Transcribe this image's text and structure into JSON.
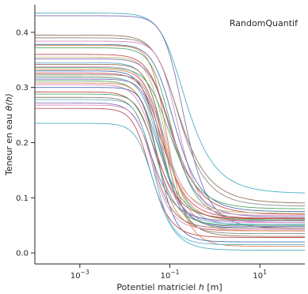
{
  "chart_data": {
    "type": "line",
    "title": "",
    "annotation": "RandomQuantif",
    "xlabel": "Potentiel matriciel h [m]",
    "xlabel_parts": {
      "pre": "Potentiel matriciel ",
      "var": "h",
      "post": " [m]"
    },
    "ylabel": "Teneur en eau θ(h)",
    "ylabel_parts": {
      "pre": "Teneur en eau ",
      "var": "θ(h)"
    },
    "xscale": "log",
    "xlim": [
      0.0001,
      100
    ],
    "ylim": [
      -0.02,
      0.45
    ],
    "xticks": [
      {
        "value": 0.001,
        "base": "10",
        "exp": "−3"
      },
      {
        "value": 0.1,
        "base": "10",
        "exp": "−1"
      },
      {
        "value": 10,
        "base": "10",
        "exp": "1"
      }
    ],
    "yticks": [
      {
        "value": 0.0,
        "label": "0.0"
      },
      {
        "value": 0.1,
        "label": "0.1"
      },
      {
        "value": 0.2,
        "label": "0.2"
      },
      {
        "value": 0.3,
        "label": "0.3"
      },
      {
        "value": 0.4,
        "label": "0.4"
      }
    ],
    "grid": false,
    "x_range": [
      0.0001,
      100
    ],
    "series": [
      {
        "theta_s": 0.435,
        "theta_r": 0.108,
        "alpha": 8,
        "n": 1.9,
        "color": "#4cb1c7"
      },
      {
        "theta_s": 0.43,
        "theta_r": 0.045,
        "alpha": 7,
        "n": 2.2,
        "color": "#8172b3"
      },
      {
        "theta_s": 0.395,
        "theta_r": 0.09,
        "alpha": 11,
        "n": 1.9,
        "color": "#937860"
      },
      {
        "theta_s": 0.39,
        "theta_r": 0.085,
        "alpha": 10,
        "n": 2.0,
        "color": "#8c8c8c"
      },
      {
        "theta_s": 0.384,
        "theta_r": 0.055,
        "alpha": 9,
        "n": 2.3,
        "color": "#da8bc3"
      },
      {
        "theta_s": 0.378,
        "theta_r": 0.075,
        "alpha": 12,
        "n": 2.1,
        "color": "#4c72b0"
      },
      {
        "theta_s": 0.376,
        "theta_r": 0.012,
        "alpha": 14,
        "n": 2.6,
        "color": "#dd8452"
      },
      {
        "theta_s": 0.372,
        "theta_r": 0.06,
        "alpha": 13,
        "n": 2.2,
        "color": "#55a868"
      },
      {
        "theta_s": 0.36,
        "theta_r": 0.07,
        "alpha": 15,
        "n": 2.0,
        "color": "#c44e52"
      },
      {
        "theta_s": 0.355,
        "theta_r": 0.04,
        "alpha": 16,
        "n": 2.4,
        "color": "#ccb974"
      },
      {
        "theta_s": 0.352,
        "theta_r": 0.065,
        "alpha": 14,
        "n": 2.1,
        "color": "#8172b3"
      },
      {
        "theta_s": 0.345,
        "theta_r": 0.05,
        "alpha": 18,
        "n": 2.3,
        "color": "#64b5cd"
      },
      {
        "theta_s": 0.342,
        "theta_r": 0.03,
        "alpha": 17,
        "n": 2.5,
        "color": "#937860"
      },
      {
        "theta_s": 0.338,
        "theta_r": 0.068,
        "alpha": 20,
        "n": 2.2,
        "color": "#da8bc3"
      },
      {
        "theta_s": 0.336,
        "theta_r": 0.08,
        "alpha": 16,
        "n": 2.0,
        "color": "#55a868"
      },
      {
        "theta_s": 0.333,
        "theta_r": 0.058,
        "alpha": 19,
        "n": 2.3,
        "color": "#dd8452"
      },
      {
        "theta_s": 0.33,
        "theta_r": 0.045,
        "alpha": 22,
        "n": 2.4,
        "color": "#4c72b0"
      },
      {
        "theta_s": 0.326,
        "theta_r": 0.063,
        "alpha": 21,
        "n": 2.2,
        "color": "#c44e52"
      },
      {
        "theta_s": 0.323,
        "theta_r": 0.035,
        "alpha": 18,
        "n": 2.6,
        "color": "#8c8c8c"
      },
      {
        "theta_s": 0.32,
        "theta_r": 0.072,
        "alpha": 24,
        "n": 2.1,
        "color": "#ccb974"
      },
      {
        "theta_s": 0.318,
        "theta_r": 0.052,
        "alpha": 23,
        "n": 2.4,
        "color": "#64b5cd"
      },
      {
        "theta_s": 0.315,
        "theta_r": 0.048,
        "alpha": 20,
        "n": 2.5,
        "color": "#8172b3"
      },
      {
        "theta_s": 0.312,
        "theta_r": 0.06,
        "alpha": 26,
        "n": 2.2,
        "color": "#55a868"
      },
      {
        "theta_s": 0.308,
        "theta_r": 0.04,
        "alpha": 25,
        "n": 2.6,
        "color": "#dd8452"
      },
      {
        "theta_s": 0.305,
        "theta_r": 0.055,
        "alpha": 28,
        "n": 2.3,
        "color": "#da8bc3"
      },
      {
        "theta_s": 0.3,
        "theta_r": 0.02,
        "alpha": 22,
        "n": 2.8,
        "color": "#4c72b0"
      },
      {
        "theta_s": 0.292,
        "theta_r": 0.062,
        "alpha": 30,
        "n": 2.2,
        "color": "#c44e52"
      },
      {
        "theta_s": 0.288,
        "theta_r": 0.05,
        "alpha": 27,
        "n": 2.4,
        "color": "#55a868"
      },
      {
        "theta_s": 0.282,
        "theta_r": 0.045,
        "alpha": 32,
        "n": 2.5,
        "color": "#937860"
      },
      {
        "theta_s": 0.278,
        "theta_r": 0.015,
        "alpha": 29,
        "n": 2.7,
        "color": "#64b5cd"
      },
      {
        "theta_s": 0.272,
        "theta_r": 0.058,
        "alpha": 34,
        "n": 2.3,
        "color": "#8172b3"
      },
      {
        "theta_s": 0.268,
        "theta_r": 0.042,
        "alpha": 31,
        "n": 2.6,
        "color": "#da8bc3"
      },
      {
        "theta_s": 0.262,
        "theta_r": 0.028,
        "alpha": 36,
        "n": 2.5,
        "color": "#c44e52"
      },
      {
        "theta_s": 0.235,
        "theta_r": 0.005,
        "alpha": 30,
        "n": 2.4,
        "color": "#4cb1c7"
      }
    ]
  }
}
